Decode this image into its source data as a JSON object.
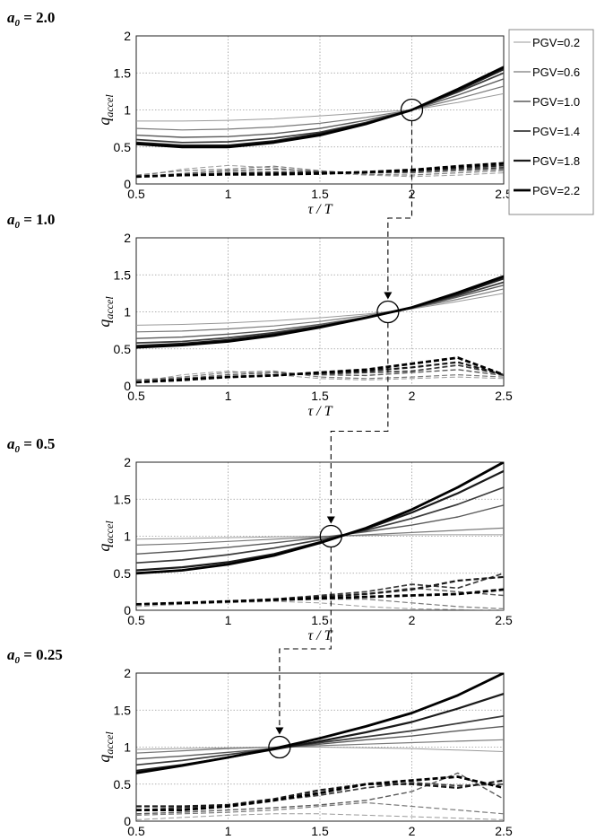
{
  "chart_data": [
    {
      "type": "line",
      "title": "a0 = 2.0",
      "title_base": "a",
      "title_sub": "0",
      "title_rest": " = 2.0",
      "xlabel": "τ / T",
      "ylabel_main": "q",
      "ylabel_sub": "accel",
      "xlim": [
        0.5,
        2.5
      ],
      "ylim": [
        0,
        2
      ],
      "x_ticks": [
        "0.5",
        "1",
        "1.5",
        "2",
        "2.5"
      ],
      "y_ticks": [
        "0",
        "0.5",
        "1",
        "1.5",
        "2"
      ],
      "grid": true,
      "x": [
        0.5,
        0.75,
        1.0,
        1.25,
        1.5,
        1.75,
        2.0,
        2.25,
        2.5
      ],
      "series": [
        {
          "name": "PGV=0.2",
          "values": [
            0.85,
            0.85,
            0.86,
            0.88,
            0.92,
            0.96,
            1.0,
            1.1,
            1.22
          ]
        },
        {
          "name": "PGV=0.6",
          "values": [
            0.75,
            0.73,
            0.74,
            0.77,
            0.82,
            0.9,
            1.0,
            1.15,
            1.32
          ]
        },
        {
          "name": "PGV=1.0",
          "values": [
            0.66,
            0.63,
            0.64,
            0.68,
            0.75,
            0.86,
            1.0,
            1.2,
            1.42
          ]
        },
        {
          "name": "PGV=1.4",
          "values": [
            0.6,
            0.56,
            0.57,
            0.62,
            0.7,
            0.83,
            1.0,
            1.24,
            1.5
          ]
        },
        {
          "name": "PGV=1.8",
          "values": [
            0.56,
            0.52,
            0.52,
            0.58,
            0.68,
            0.82,
            1.0,
            1.26,
            1.55
          ]
        },
        {
          "name": "PGV=2.2",
          "values": [
            0.54,
            0.5,
            0.5,
            0.56,
            0.66,
            0.81,
            1.0,
            1.28,
            1.58
          ]
        }
      ],
      "lower_series": [
        {
          "values": [
            0.1,
            0.2,
            0.25,
            0.22,
            0.15,
            0.12,
            0.1,
            0.12,
            0.15
          ]
        },
        {
          "values": [
            0.12,
            0.18,
            0.2,
            0.24,
            0.18,
            0.13,
            0.12,
            0.15,
            0.18
          ]
        },
        {
          "values": [
            0.1,
            0.14,
            0.18,
            0.2,
            0.17,
            0.15,
            0.15,
            0.18,
            0.2
          ]
        },
        {
          "values": [
            0.1,
            0.12,
            0.15,
            0.16,
            0.16,
            0.15,
            0.17,
            0.2,
            0.22
          ]
        },
        {
          "values": [
            0.1,
            0.12,
            0.13,
            0.14,
            0.15,
            0.16,
            0.18,
            0.22,
            0.25
          ]
        },
        {
          "values": [
            0.1,
            0.12,
            0.13,
            0.13,
            0.14,
            0.16,
            0.19,
            0.24,
            0.28
          ]
        }
      ],
      "circle": [
        2.0,
        1.0
      ]
    },
    {
      "type": "line",
      "title": "a0 = 1.0",
      "title_base": "a",
      "title_sub": "0",
      "title_rest": " = 1.0",
      "xlabel": "τ / T",
      "ylabel_main": "q",
      "ylabel_sub": "accel",
      "xlim": [
        0.5,
        2.5
      ],
      "ylim": [
        0,
        2
      ],
      "x_ticks": [
        "0.5",
        "1",
        "1.5",
        "2",
        "2.5"
      ],
      "y_ticks": [
        "0",
        "0.5",
        "1",
        "1.5",
        "2"
      ],
      "grid": true,
      "x": [
        0.5,
        0.75,
        1.0,
        1.25,
        1.5,
        1.75,
        2.0,
        2.25,
        2.5
      ],
      "series": [
        {
          "name": "PGV=0.2",
          "values": [
            0.82,
            0.83,
            0.85,
            0.88,
            0.92,
            0.97,
            1.04,
            1.14,
            1.25
          ]
        },
        {
          "name": "PGV=0.6",
          "values": [
            0.73,
            0.74,
            0.77,
            0.81,
            0.87,
            0.95,
            1.05,
            1.17,
            1.31
          ]
        },
        {
          "name": "PGV=1.0",
          "values": [
            0.64,
            0.66,
            0.7,
            0.75,
            0.83,
            0.93,
            1.05,
            1.2,
            1.36
          ]
        },
        {
          "name": "PGV=1.4",
          "values": [
            0.58,
            0.6,
            0.65,
            0.72,
            0.81,
            0.92,
            1.05,
            1.22,
            1.4
          ]
        },
        {
          "name": "PGV=1.8",
          "values": [
            0.54,
            0.57,
            0.62,
            0.7,
            0.8,
            0.92,
            1.06,
            1.24,
            1.45
          ]
        },
        {
          "name": "PGV=2.2",
          "values": [
            0.52,
            0.55,
            0.6,
            0.68,
            0.79,
            0.92,
            1.06,
            1.26,
            1.48
          ]
        }
      ],
      "lower_series": [
        {
          "values": [
            0.05,
            0.15,
            0.2,
            0.15,
            0.1,
            0.08,
            0.1,
            0.12,
            0.1
          ]
        },
        {
          "values": [
            0.08,
            0.12,
            0.18,
            0.2,
            0.12,
            0.1,
            0.12,
            0.15,
            0.12
          ]
        },
        {
          "values": [
            0.08,
            0.1,
            0.15,
            0.18,
            0.15,
            0.14,
            0.18,
            0.22,
            0.14
          ]
        },
        {
          "values": [
            0.05,
            0.1,
            0.12,
            0.15,
            0.16,
            0.18,
            0.2,
            0.28,
            0.15
          ]
        },
        {
          "values": [
            0.05,
            0.08,
            0.12,
            0.14,
            0.18,
            0.2,
            0.25,
            0.32,
            0.15
          ]
        },
        {
          "values": [
            0.05,
            0.08,
            0.12,
            0.14,
            0.18,
            0.22,
            0.3,
            0.38,
            0.15
          ]
        }
      ],
      "circle": [
        1.87,
        1.0
      ]
    },
    {
      "type": "line",
      "title": "a0 = 0.5",
      "title_base": "a",
      "title_sub": "0",
      "title_rest": " = 0.5",
      "xlabel": "τ / T",
      "ylabel_main": "q",
      "ylabel_sub": "accel",
      "xlim": [
        0.5,
        2.5
      ],
      "ylim": [
        0,
        2
      ],
      "x_ticks": [
        "0.5",
        "1",
        "1.5",
        "2",
        "2.5"
      ],
      "y_ticks": [
        "0",
        "0.5",
        "1",
        "1.5",
        "2"
      ],
      "grid": true,
      "x": [
        0.5,
        0.75,
        1.0,
        1.25,
        1.5,
        1.75,
        2.0,
        2.25,
        2.5
      ],
      "series": [
        {
          "name": "PGV=0.2",
          "values": [
            0.96,
            0.97,
            0.98,
            0.99,
            1.0,
            1.01,
            1.02,
            1.02,
            1.02
          ]
        },
        {
          "name": "PGV=0.6",
          "values": [
            0.88,
            0.9,
            0.93,
            0.96,
            0.99,
            1.02,
            1.05,
            1.08,
            1.11
          ]
        },
        {
          "name": "PGV=1.0",
          "values": [
            0.76,
            0.8,
            0.85,
            0.91,
            0.98,
            1.06,
            1.15,
            1.26,
            1.42
          ]
        },
        {
          "name": "PGV=1.4",
          "values": [
            0.64,
            0.68,
            0.75,
            0.84,
            0.95,
            1.08,
            1.24,
            1.43,
            1.66
          ]
        },
        {
          "name": "PGV=1.8",
          "values": [
            0.54,
            0.58,
            0.65,
            0.76,
            0.92,
            1.1,
            1.32,
            1.58,
            1.88
          ]
        },
        {
          "name": "PGV=2.2",
          "values": [
            0.5,
            0.54,
            0.62,
            0.74,
            0.91,
            1.11,
            1.36,
            1.66,
            2.0
          ]
        }
      ],
      "lower_series": [
        {
          "values": [
            0.05,
            0.08,
            0.1,
            0.12,
            0.1,
            0.05,
            0.02,
            0.01,
            0.0
          ]
        },
        {
          "values": [
            0.08,
            0.1,
            0.12,
            0.13,
            0.15,
            0.15,
            0.1,
            0.05,
            0.02
          ]
        },
        {
          "values": [
            0.08,
            0.1,
            0.12,
            0.15,
            0.18,
            0.22,
            0.3,
            0.25,
            0.2
          ]
        },
        {
          "values": [
            0.08,
            0.1,
            0.12,
            0.15,
            0.2,
            0.25,
            0.35,
            0.3,
            0.5
          ]
        },
        {
          "values": [
            0.08,
            0.1,
            0.12,
            0.15,
            0.18,
            0.22,
            0.28,
            0.4,
            0.45
          ]
        },
        {
          "values": [
            0.08,
            0.1,
            0.12,
            0.14,
            0.16,
            0.18,
            0.2,
            0.22,
            0.28
          ]
        }
      ],
      "circle": [
        1.56,
        1.0
      ]
    },
    {
      "type": "line",
      "title": "a0 = 0.25",
      "title_base": "a",
      "title_sub": "0",
      "title_rest": " = 0.25",
      "xlabel": "τ / T",
      "ylabel_main": "q",
      "ylabel_sub": "accel",
      "xlim": [
        0.5,
        2.5
      ],
      "ylim": [
        0,
        2
      ],
      "x_ticks": [
        "0.5",
        "1",
        "1.5",
        "2",
        "2.5"
      ],
      "y_ticks": [
        "0",
        "0.5",
        "1",
        "1.5",
        "2"
      ],
      "grid": true,
      "x": [
        0.5,
        0.75,
        1.0,
        1.25,
        1.5,
        1.75,
        2.0,
        2.25,
        2.5
      ],
      "series": [
        {
          "name": "PGV=0.2",
          "values": [
            0.97,
            0.98,
            0.99,
            1.0,
            1.0,
            0.99,
            0.98,
            0.96,
            0.94
          ]
        },
        {
          "name": "PGV=0.6",
          "values": [
            0.92,
            0.95,
            0.98,
            1.0,
            1.02,
            1.04,
            1.06,
            1.08,
            1.1
          ]
        },
        {
          "name": "PGV=1.0",
          "values": [
            0.84,
            0.88,
            0.93,
            0.98,
            1.04,
            1.1,
            1.15,
            1.22,
            1.28
          ]
        },
        {
          "name": "PGV=1.4",
          "values": [
            0.76,
            0.82,
            0.9,
            0.98,
            1.06,
            1.14,
            1.22,
            1.32,
            1.42
          ]
        },
        {
          "name": "PGV=1.8",
          "values": [
            0.68,
            0.76,
            0.86,
            0.97,
            1.08,
            1.2,
            1.34,
            1.52,
            1.72
          ]
        },
        {
          "name": "PGV=2.2",
          "values": [
            0.65,
            0.75,
            0.86,
            0.98,
            1.12,
            1.28,
            1.46,
            1.7,
            2.0
          ]
        }
      ],
      "lower_series": [
        {
          "values": [
            0.02,
            0.05,
            0.08,
            0.1,
            0.1,
            0.08,
            0.06,
            0.04,
            0.02
          ]
        },
        {
          "values": [
            0.08,
            0.1,
            0.12,
            0.15,
            0.2,
            0.25,
            0.2,
            0.15,
            0.1
          ]
        },
        {
          "values": [
            0.1,
            0.12,
            0.15,
            0.18,
            0.22,
            0.28,
            0.4,
            0.65,
            0.3
          ]
        },
        {
          "values": [
            0.15,
            0.18,
            0.22,
            0.28,
            0.35,
            0.45,
            0.52,
            0.48,
            0.5
          ]
        },
        {
          "values": [
            0.2,
            0.2,
            0.22,
            0.3,
            0.42,
            0.5,
            0.5,
            0.45,
            0.55
          ]
        },
        {
          "values": [
            0.15,
            0.15,
            0.2,
            0.28,
            0.38,
            0.5,
            0.55,
            0.6,
            0.45
          ]
        }
      ],
      "circle": [
        1.28,
        1.0
      ]
    }
  ]
}
